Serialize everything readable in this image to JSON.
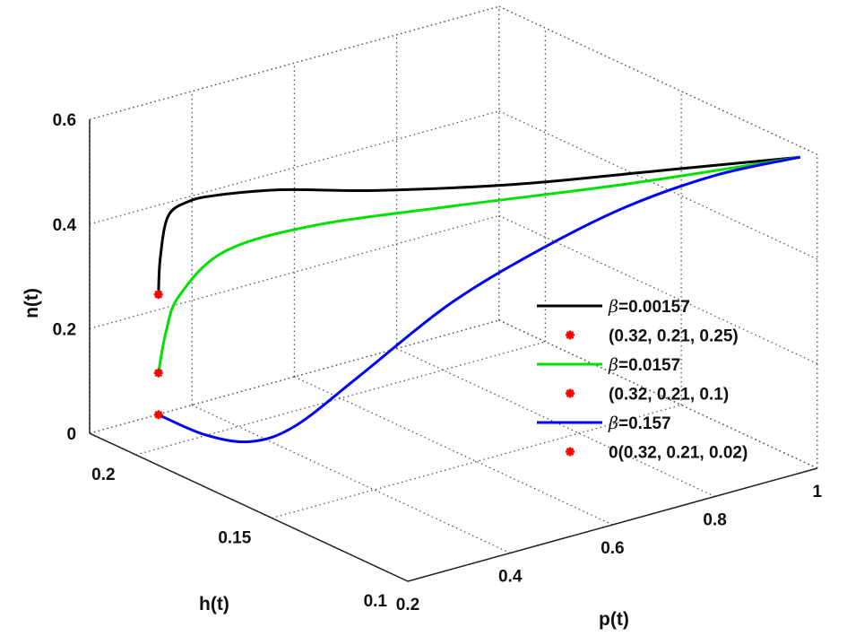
{
  "chart_data": {
    "type": "line3d",
    "xlabel": "p(t)",
    "ylabel": "h(t)",
    "zlabel": "n(t)",
    "xlim": [
      0.2,
      1.0
    ],
    "ylim": [
      0.1,
      0.217
    ],
    "zlim": [
      0,
      0.6
    ],
    "xticks": [
      "0.2",
      "0.4",
      "0.6",
      "0.8",
      "1"
    ],
    "yticks": [
      "0.1",
      "0.15",
      "0.2"
    ],
    "zticks": [
      "0",
      "0.2",
      "0.4",
      "0.6"
    ],
    "grid": true,
    "legend_position": "right",
    "series": [
      {
        "name": "β=0.00157",
        "color": "#000000",
        "p": [
          0.32,
          0.322,
          0.33,
          0.35,
          0.38,
          0.45,
          0.55,
          0.7,
          0.85,
          1.0
        ],
        "h": [
          0.21,
          0.2097,
          0.2084,
          0.2052,
          0.2005,
          0.1894,
          0.1735,
          0.1497,
          0.1258,
          0.102
        ],
        "n": [
          0.25,
          0.32,
          0.4,
          0.43,
          0.446,
          0.465,
          0.475,
          0.504,
          0.547,
          0.59
        ]
      },
      {
        "name": "β=0.0157",
        "color": "#00e000",
        "p": [
          0.32,
          0.328,
          0.342,
          0.39,
          0.484,
          0.627,
          0.817,
          1.0
        ],
        "h": [
          0.21,
          0.2087,
          0.2065,
          0.1989,
          0.184,
          0.1612,
          0.1311,
          0.102
        ],
        "n": [
          0.1,
          0.18,
          0.25,
          0.34,
          0.4,
          0.453,
          0.518,
          0.59
        ]
      },
      {
        "name": "β=0.157",
        "color": "#0000ff",
        "p": [
          0.32,
          0.37,
          0.418,
          0.465,
          0.532,
          0.627,
          0.722,
          0.817,
          0.912,
          1.0
        ],
        "h": [
          0.21,
          0.2021,
          0.1944,
          0.187,
          0.1763,
          0.1612,
          0.1462,
          0.1311,
          0.116,
          0.102
        ],
        "n": [
          0.02,
          -0.013,
          -0.02,
          0.015,
          0.117,
          0.265,
          0.379,
          0.475,
          0.546,
          0.59
        ]
      }
    ],
    "markers": [
      {
        "name": "(0.32, 0.21, 0.25)",
        "color": "#ff0000",
        "p": 0.32,
        "h": 0.21,
        "n": 0.25
      },
      {
        "name": "(0.32, 0.21, 0.1)",
        "color": "#ff0000",
        "p": 0.32,
        "h": 0.21,
        "n": 0.1
      },
      {
        "name": "0(0.32, 0.21, 0.02)",
        "color": "#ff0000",
        "p": 0.32,
        "h": 0.21,
        "n": 0.02
      }
    ],
    "legend": [
      "β=0.00157",
      "(0.32, 0.21, 0.25)",
      "β=0.0157",
      "(0.32, 0.21, 0.1)",
      "β=0.157",
      "0(0.32, 0.21, 0.02)"
    ]
  }
}
